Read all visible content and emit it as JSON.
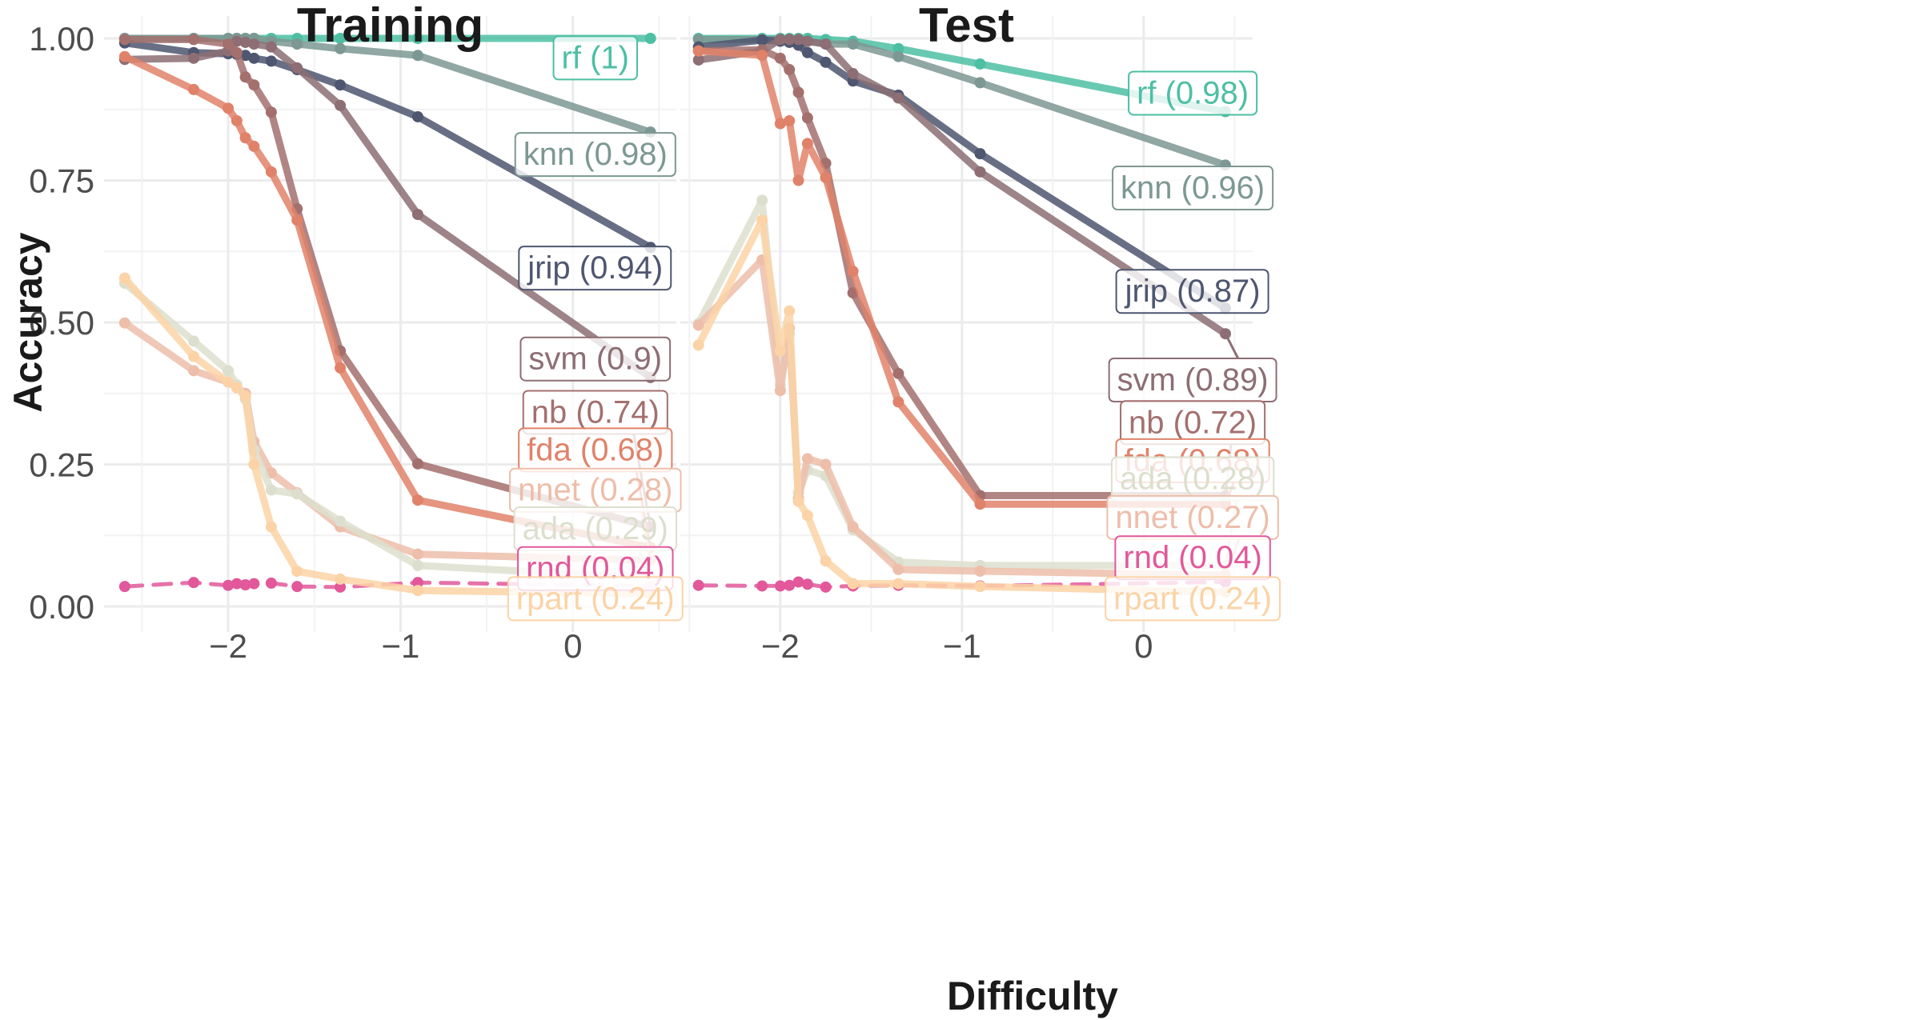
{
  "chart_data": {
    "type": "line",
    "xlabel": "Difficulty",
    "ylabel": "Accuracy",
    "ylim": [
      0,
      1.05
    ],
    "yticks": [
      "0.00",
      "0.25",
      "0.50",
      "0.75",
      "1.00"
    ],
    "xticks": [
      "−2",
      "−1",
      "0"
    ],
    "grid": true,
    "legend": "none",
    "panels": [
      {
        "title": "Training",
        "xlim": [
          -2.72,
          0.6
        ],
        "series": [
          {
            "name": "rf",
            "label": "rf (1)",
            "color": "#4DBFA3",
            "dashed": false,
            "x": [
              -2.6,
              -2.2,
              -2.0,
              -1.95,
              -1.9,
              -1.85,
              -1.75,
              -1.6,
              -1.35,
              -0.9,
              0.45
            ],
            "y": [
              1.0,
              1.0,
              1.0,
              1.0,
              1.0,
              1.0,
              1.0,
              1.0,
              1.0,
              1.0,
              1.0
            ]
          },
          {
            "name": "knn",
            "label": "knn (0.98)",
            "color": "#7D9893",
            "dashed": false,
            "x": [
              -2.6,
              -2.2,
              -2.0,
              -1.95,
              -1.9,
              -1.85,
              -1.75,
              -1.6,
              -1.35,
              -0.9,
              0.45
            ],
            "y": [
              1.0,
              1.0,
              1.0,
              1.0,
              1.0,
              1.0,
              0.995,
              0.99,
              0.982,
              0.97,
              0.835
            ]
          },
          {
            "name": "jrip",
            "label": "jrip (0.94)",
            "color": "#4E5670",
            "dashed": false,
            "x": [
              -2.6,
              -2.2,
              -2.0,
              -1.95,
              -1.9,
              -1.85,
              -1.75,
              -1.6,
              -1.35,
              -0.9,
              0.45
            ],
            "y": [
              0.992,
              0.975,
              0.973,
              0.972,
              0.97,
              0.965,
              0.96,
              0.945,
              0.918,
              0.862,
              0.632
            ]
          },
          {
            "name": "svm",
            "label": "svm (0.9)",
            "color": "#8C6E74",
            "dashed": false,
            "x": [
              -2.6,
              -2.2,
              -2.0,
              -1.95,
              -1.9,
              -1.85,
              -1.75,
              -1.6,
              -1.35,
              -0.9,
              0.45
            ],
            "y": [
              0.963,
              0.965,
              0.978,
              0.995,
              0.993,
              0.99,
              0.985,
              0.948,
              0.882,
              0.69,
              0.403
            ]
          },
          {
            "name": "nb",
            "label": "nb (0.74)",
            "color": "#A3706E",
            "dashed": false,
            "x": [
              -2.6,
              -2.2,
              -2.0,
              -1.95,
              -1.9,
              -1.85,
              -1.75,
              -1.6,
              -1.35,
              -0.9,
              0.45
            ],
            "y": [
              0.998,
              0.998,
              0.99,
              0.975,
              0.932,
              0.918,
              0.87,
              0.7,
              0.45,
              0.251,
              0.14
            ]
          },
          {
            "name": "fda",
            "label": "fda (0.68)",
            "color": "#E0826A",
            "dashed": false,
            "x": [
              -2.6,
              -2.2,
              -2.0,
              -1.95,
              -1.9,
              -1.85,
              -1.75,
              -1.6,
              -1.35,
              -0.9,
              0.45
            ],
            "y": [
              0.968,
              0.91,
              0.877,
              0.855,
              0.825,
              0.81,
              0.765,
              0.68,
              0.42,
              0.187,
              0.104
            ]
          },
          {
            "name": "nnet",
            "label": "nnet (0.28)",
            "color": "#EDBEAA",
            "dashed": false,
            "x": [
              -2.6,
              -2.2,
              -2.0,
              -1.95,
              -1.9,
              -1.85,
              -1.75,
              -1.6,
              -1.35,
              -0.9,
              0.45
            ],
            "y": [
              0.499,
              0.415,
              0.395,
              0.385,
              0.375,
              0.29,
              0.235,
              0.2,
              0.14,
              0.092,
              0.081
            ]
          },
          {
            "name": "ada",
            "label": "ada (0.29)",
            "color": "#DDDFCE",
            "dashed": false,
            "x": [
              -2.6,
              -2.2,
              -2.0,
              -1.95,
              -1.9,
              -1.85,
              -1.75,
              -1.6,
              -1.35,
              -0.9,
              0.45
            ],
            "y": [
              0.569,
              0.467,
              0.415,
              0.39,
              0.365,
              0.275,
              0.205,
              0.198,
              0.15,
              0.072,
              0.05
            ]
          },
          {
            "name": "rnd",
            "label": "rnd (0.04)",
            "color": "#E2589A",
            "dashed": true,
            "x": [
              -2.6,
              -2.2,
              -2.0,
              -1.95,
              -1.9,
              -1.85,
              -1.75,
              -1.6,
              -1.35,
              -0.9,
              0.45
            ],
            "y": [
              0.035,
              0.042,
              0.037,
              0.04,
              0.038,
              0.04,
              0.041,
              0.035,
              0.034,
              0.042,
              0.036
            ]
          },
          {
            "name": "rpart",
            "label": "rpart (0.24)",
            "color": "#FBD3A6",
            "dashed": false,
            "x": [
              -2.6,
              -2.2,
              -2.0,
              -1.95,
              -1.9,
              -1.85,
              -1.75,
              -1.6,
              -1.35,
              -0.9,
              0.45
            ],
            "y": [
              0.578,
              0.44,
              0.395,
              0.385,
              0.37,
              0.25,
              0.14,
              0.062,
              0.048,
              0.028,
              0.022
            ]
          }
        ],
        "labels": [
          {
            "series": "rf",
            "x": 0.13,
            "y": 0.967
          },
          {
            "series": "knn",
            "x": 0.13,
            "y": 0.797
          },
          {
            "series": "jrip",
            "x": 0.13,
            "y": 0.597
          },
          {
            "series": "svm",
            "x": 0.13,
            "y": 0.437
          },
          {
            "series": "nb",
            "x": 0.13,
            "y": 0.343
          },
          {
            "series": "fda",
            "x": 0.13,
            "y": 0.277
          },
          {
            "series": "nnet",
            "x": 0.13,
            "y": 0.206
          },
          {
            "series": "ada",
            "x": 0.13,
            "y": 0.138
          },
          {
            "series": "rnd",
            "x": 0.13,
            "y": 0.068
          },
          {
            "series": "rpart",
            "x": 0.13,
            "y": 0.015
          }
        ]
      },
      {
        "title": "Test",
        "xlim": [
          -2.55,
          0.6
        ],
        "series": [
          {
            "name": "rf",
            "label": "rf (0.98)",
            "color": "#4DBFA3",
            "dashed": false,
            "x": [
              -2.45,
              -2.1,
              -2.0,
              -1.95,
              -1.9,
              -1.85,
              -1.75,
              -1.6,
              -1.35,
              -0.9,
              0.45
            ],
            "y": [
              1.0,
              1.0,
              1.0,
              1.0,
              1.0,
              1.0,
              0.998,
              0.995,
              0.982,
              0.955,
              0.871
            ]
          },
          {
            "name": "knn",
            "label": "knn (0.96)",
            "color": "#7D9893",
            "dashed": false,
            "x": [
              -2.45,
              -2.1,
              -2.0,
              -1.95,
              -1.9,
              -1.85,
              -1.75,
              -1.6,
              -1.35,
              -0.9,
              0.45
            ],
            "y": [
              0.998,
              0.998,
              0.998,
              0.998,
              0.998,
              0.995,
              0.99,
              0.99,
              0.968,
              0.922,
              0.777
            ]
          },
          {
            "name": "jrip",
            "label": "jrip (0.87)",
            "color": "#4E5670",
            "dashed": false,
            "x": [
              -2.45,
              -2.1,
              -2.0,
              -1.95,
              -1.9,
              -1.85,
              -1.75,
              -1.6,
              -1.35,
              -0.9,
              0.45
            ],
            "y": [
              0.985,
              0.997,
              0.995,
              0.993,
              0.988,
              0.975,
              0.958,
              0.925,
              0.9,
              0.797,
              0.525
            ]
          },
          {
            "name": "svm",
            "label": "svm (0.89)",
            "color": "#8C6E74",
            "dashed": false,
            "x": [
              -2.45,
              -2.1,
              -2.0,
              -1.95,
              -1.9,
              -1.85,
              -1.75,
              -1.6,
              -1.35,
              -0.9,
              0.45
            ],
            "y": [
              0.962,
              0.978,
              0.998,
              0.998,
              0.998,
              0.995,
              0.99,
              0.938,
              0.895,
              0.765,
              0.48
            ]
          },
          {
            "name": "nb",
            "label": "nb (0.72)",
            "color": "#A3706E",
            "dashed": false,
            "x": [
              -2.45,
              -2.1,
              -2.0,
              -1.95,
              -1.9,
              -1.85,
              -1.75,
              -1.6,
              -1.35,
              -0.9,
              0.45
            ],
            "y": [
              0.978,
              0.98,
              0.965,
              0.945,
              0.905,
              0.86,
              0.78,
              0.552,
              0.41,
              0.195,
              0.195
            ]
          },
          {
            "name": "fda",
            "label": "fda (0.68)",
            "color": "#E0826A",
            "dashed": false,
            "x": [
              -2.45,
              -2.1,
              -2.0,
              -1.95,
              -1.9,
              -1.85,
              -1.75,
              -1.6,
              -1.35,
              -0.9,
              0.45
            ],
            "y": [
              0.978,
              0.97,
              0.85,
              0.855,
              0.75,
              0.815,
              0.755,
              0.59,
              0.36,
              0.18,
              0.18
            ]
          },
          {
            "name": "ada",
            "label": "ada (0.28)",
            "color": "#DDDFCE",
            "dashed": false,
            "x": [
              -2.45,
              -2.1,
              -2.0,
              -1.95,
              -1.9,
              -1.85,
              -1.75,
              -1.6,
              -1.35,
              -0.9,
              0.45
            ],
            "y": [
              0.498,
              0.715,
              0.39,
              0.48,
              0.2,
              0.24,
              0.23,
              0.135,
              0.078,
              0.072,
              0.072
            ]
          },
          {
            "name": "nnet",
            "label": "nnet (0.27)",
            "color": "#EDBEAA",
            "dashed": false,
            "x": [
              -2.45,
              -2.1,
              -2.0,
              -1.95,
              -1.9,
              -1.85,
              -1.75,
              -1.6,
              -1.35,
              -0.9,
              0.45
            ],
            "y": [
              0.495,
              0.61,
              0.38,
              0.49,
              0.19,
              0.26,
              0.25,
              0.14,
              0.065,
              0.062,
              0.055
            ]
          },
          {
            "name": "rnd",
            "label": "rnd (0.04)",
            "color": "#E2589A",
            "dashed": true,
            "x": [
              -2.45,
              -2.1,
              -2.0,
              -1.95,
              -1.9,
              -1.85,
              -1.75,
              -1.6,
              -1.35,
              -0.9,
              0.45
            ],
            "y": [
              0.037,
              0.036,
              0.036,
              0.037,
              0.043,
              0.039,
              0.034,
              0.036,
              0.037,
              0.036,
              0.043
            ]
          },
          {
            "name": "rpart",
            "label": "rpart (0.24)",
            "color": "#FBD3A6",
            "dashed": false,
            "x": [
              -2.45,
              -2.1,
              -2.0,
              -1.95,
              -1.9,
              -1.85,
              -1.75,
              -1.6,
              -1.35,
              -0.9,
              0.45
            ],
            "y": [
              0.46,
              0.68,
              0.45,
              0.52,
              0.185,
              0.16,
              0.08,
              0.04,
              0.04,
              0.035,
              0.025
            ]
          }
        ],
        "labels": [
          {
            "series": "rf",
            "x": 0.27,
            "y": 0.905
          },
          {
            "series": "knn",
            "x": 0.27,
            "y": 0.738
          },
          {
            "series": "jrip",
            "x": 0.27,
            "y": 0.556
          },
          {
            "series": "svm",
            "x": 0.27,
            "y": 0.4
          },
          {
            "series": "nb",
            "x": 0.27,
            "y": 0.325
          },
          {
            "series": "fda",
            "x": 0.27,
            "y": 0.258
          },
          {
            "series": "ada",
            "x": 0.27,
            "y": 0.226
          },
          {
            "series": "nnet",
            "x": 0.27,
            "y": 0.158
          },
          {
            "series": "rnd",
            "x": 0.27,
            "y": 0.087
          },
          {
            "series": "rpart",
            "x": 0.27,
            "y": 0.015
          }
        ]
      }
    ]
  }
}
